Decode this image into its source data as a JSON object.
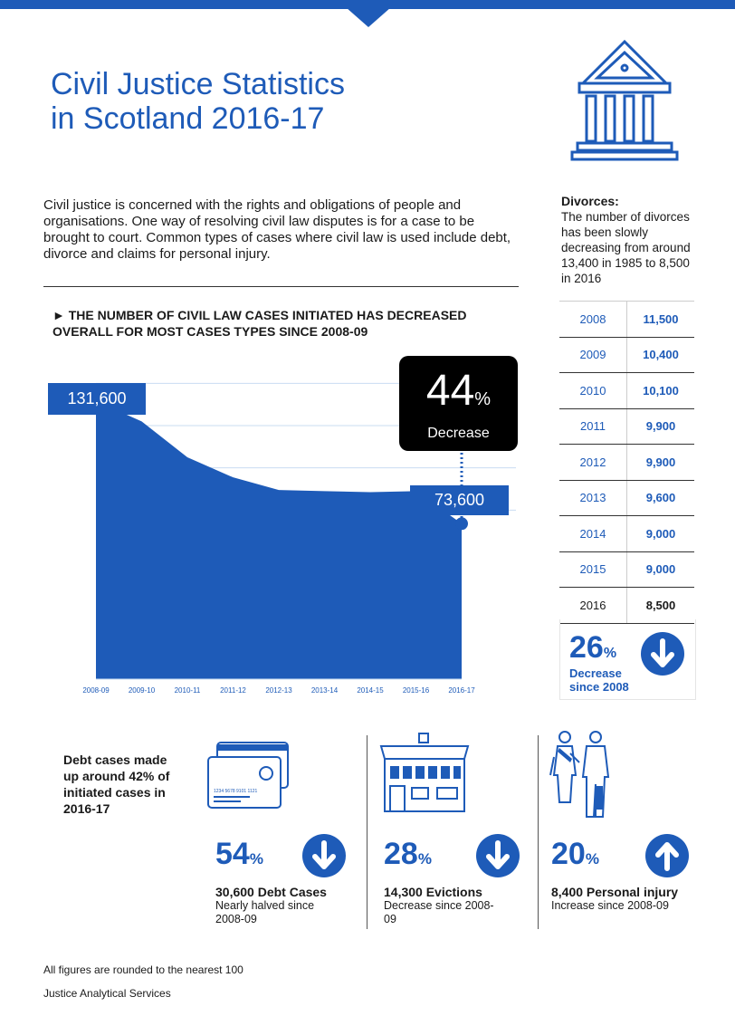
{
  "title_line1": "Civil Justice Statistics",
  "title_line2": "in Scotland 2016-17",
  "intro": "Civil justice is concerned with the rights and obligations of people and organisations. One way of resolving civil law disputes is for a case to be brought to court.  Common types of cases where civil law is used include debt, divorce and claims for personal injury.",
  "headline": "► THE NUMBER OF CIVIL LAW CASES INITIATED HAS DECREASED OVERALL FOR MOST CASES TYPES SINCE 2008-09",
  "start_label": "131,600",
  "end_label": "73,600",
  "decrease_badge": {
    "value": "44",
    "unit": "%",
    "label": "Decrease"
  },
  "chart_data": {
    "type": "area",
    "x": [
      "2008-09",
      "2009-10",
      "2010-11",
      "2011-12",
      "2012-13",
      "2013-14",
      "2014-15",
      "2015-16",
      "2016-17"
    ],
    "values": [
      131600,
      122000,
      105000,
      95500,
      89500,
      89000,
      88500,
      89000,
      73600
    ],
    "title": "",
    "xlabel": "",
    "ylabel": "",
    "ylim": [
      0,
      150000
    ],
    "color": "#1e5bb8"
  },
  "divorces": {
    "title": "Divorces:",
    "text": "The number of divorces has been slowly decreasing from around 13,400 in 1985 to 8,500 in 2016",
    "rows": [
      {
        "year": "2008",
        "value": "11,500"
      },
      {
        "year": "2009",
        "value": "10,400"
      },
      {
        "year": "2010",
        "value": "10,100"
      },
      {
        "year": "2011",
        "value": "9,900"
      },
      {
        "year": "2012",
        "value": "9,900"
      },
      {
        "year": "2013",
        "value": "9,600"
      },
      {
        "year": "2014",
        "value": "9,000"
      },
      {
        "year": "2015",
        "value": "9,000"
      },
      {
        "year": "2016",
        "value": "8,500"
      }
    ],
    "pct": "26",
    "pct_unit": "%",
    "pct_line1": "Decrease",
    "pct_line2": "since 2008"
  },
  "debt_note": "Debt cases made up around 42% of initiated cases in 2016-17",
  "card_number": "1234 5678 9101 1121",
  "stats": [
    {
      "pct": "54",
      "unit": "%",
      "head": "30,600 Debt Cases",
      "sub": "Nearly halved since 2008-09",
      "direction": "down"
    },
    {
      "pct": "28",
      "unit": "%",
      "head": "14,300 Evictions",
      "sub": "Decrease since 2008-09",
      "direction": "down"
    },
    {
      "pct": "20",
      "unit": "%",
      "head": "8,400 Personal injury",
      "sub": "Increase since 2008-09",
      "direction": "up"
    }
  ],
  "footnote": "All figures  are rounded to the nearest 100",
  "source": "Justice Analytical Services",
  "colors": {
    "accent": "#1e5bb8",
    "badge": "#000000"
  }
}
